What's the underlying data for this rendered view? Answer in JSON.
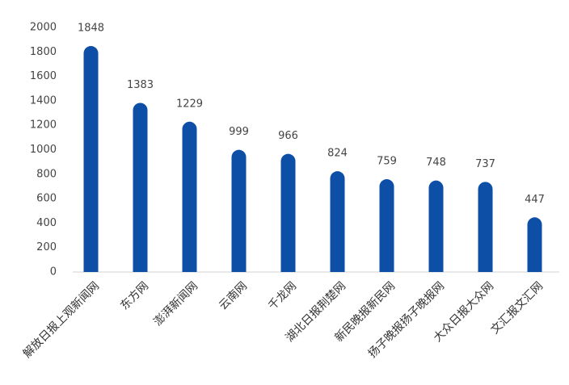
{
  "chart_data": {
    "type": "bar",
    "categories": [
      "解放日报上观新闻网",
      "东方网",
      "澎湃新闻网",
      "云南网",
      "千龙网",
      "湖北日报荆楚网",
      "新民晚报新民网",
      "扬子晚报扬子晚报网",
      "大众日报大众网",
      "文汇报文汇网"
    ],
    "values": [
      1848,
      1383,
      1229,
      999,
      966,
      824,
      759,
      748,
      737,
      447
    ],
    "color": "#0d4ea6",
    "ylim": [
      0,
      2000
    ],
    "yticks": [
      0,
      200,
      400,
      600,
      800,
      1000,
      1200,
      1400,
      1600,
      1800,
      2000
    ],
    "grid": false
  }
}
